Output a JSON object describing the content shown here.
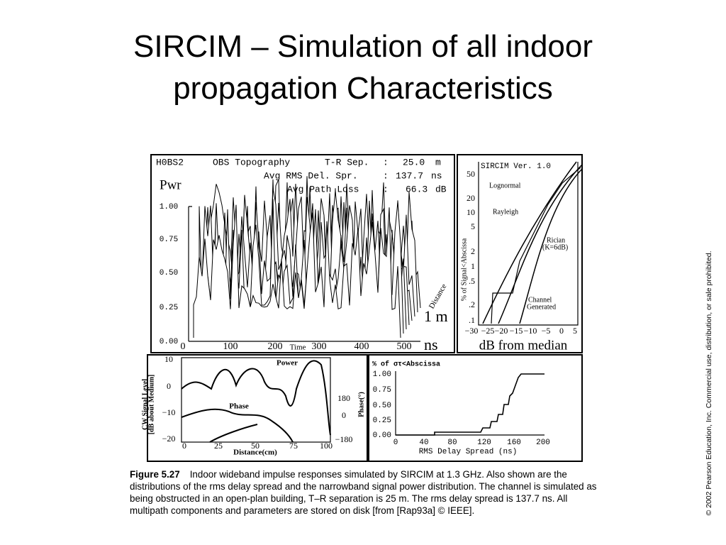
{
  "title": "SIRCIM – Simulation of all indoor propagation Characteristics",
  "figure": {
    "impulse": {
      "header": [
        [
          "H0BS2",
          "OBS Topography",
          "T-R Sep.",
          ":",
          "25.0",
          "m"
        ],
        [
          "Avg RMS Del. Spr.",
          ":",
          "137.7",
          "ns"
        ],
        [
          "Avg Path Loss",
          ":",
          "66.3",
          "dB"
        ]
      ],
      "y_label": "Pwr",
      "y_ticks": [
        "1.00",
        "0.75",
        "0.50",
        "0.25",
        "0.00"
      ],
      "x_ticks": [
        "0",
        "100",
        "200",
        "300",
        "400",
        "500"
      ],
      "x_label": "Time",
      "depth_label": "Distance",
      "depth_value": "1 m",
      "x_unit": "ns"
    },
    "fading": {
      "title": "SIRCIM Ver. 1.0",
      "y_label": "% of Signal<Abscissa",
      "y_ticks": [
        "50",
        "20",
        "10",
        "5",
        "2",
        "1",
        ".5",
        ".2",
        ".1"
      ],
      "x_ticks": [
        "−30",
        "−25",
        "−20",
        "−15",
        "−10",
        "−5",
        "0",
        "5"
      ],
      "x_label": "dB from median",
      "curves": [
        "Lognormal",
        "Rayleigh",
        "Rician",
        "(K=6dB)",
        "Channel",
        "Generated"
      ]
    },
    "cw": {
      "y_label": [
        "CW Signal Level",
        "[dB about Medium]"
      ],
      "y_ticks": [
        "10",
        "0",
        "−10",
        "−20"
      ],
      "y2_label": "Phase(°)",
      "y2_ticks": [
        "180",
        "0",
        "−180"
      ],
      "x_ticks": [
        "0",
        "25",
        "50",
        "75",
        "100"
      ],
      "x_label": "Distance(cm)",
      "curves": [
        "Power",
        "Phase"
      ]
    },
    "delay": {
      "y_label": "% of στ<Abscissa",
      "y_ticks": [
        "1.00",
        "0.75",
        "0.50",
        "0.25",
        "0.00"
      ],
      "x_ticks": [
        "0",
        "40",
        "80",
        "120",
        "160",
        "200"
      ],
      "x_label": "RMS Delay Spread (ns)"
    }
  },
  "caption": {
    "label": "Figure 5.27",
    "text": "Indoor wideband impulse responses simulated by SIRCIM at 1.3 GHz. Also shown are the distributions of the rms delay spread and the narrowband signal power distribution. The channel is simulated as being obstructed in an open-plan building, T–R separation is 25 m. The rms delay spread is 137.7 ns. All multipath components and parameters are stored on disk [from [Rap93a] © IEEE]."
  },
  "copyright": "© 2002 Pearson Education, Inc. Commercial use, distribution, or sale prohibited."
}
